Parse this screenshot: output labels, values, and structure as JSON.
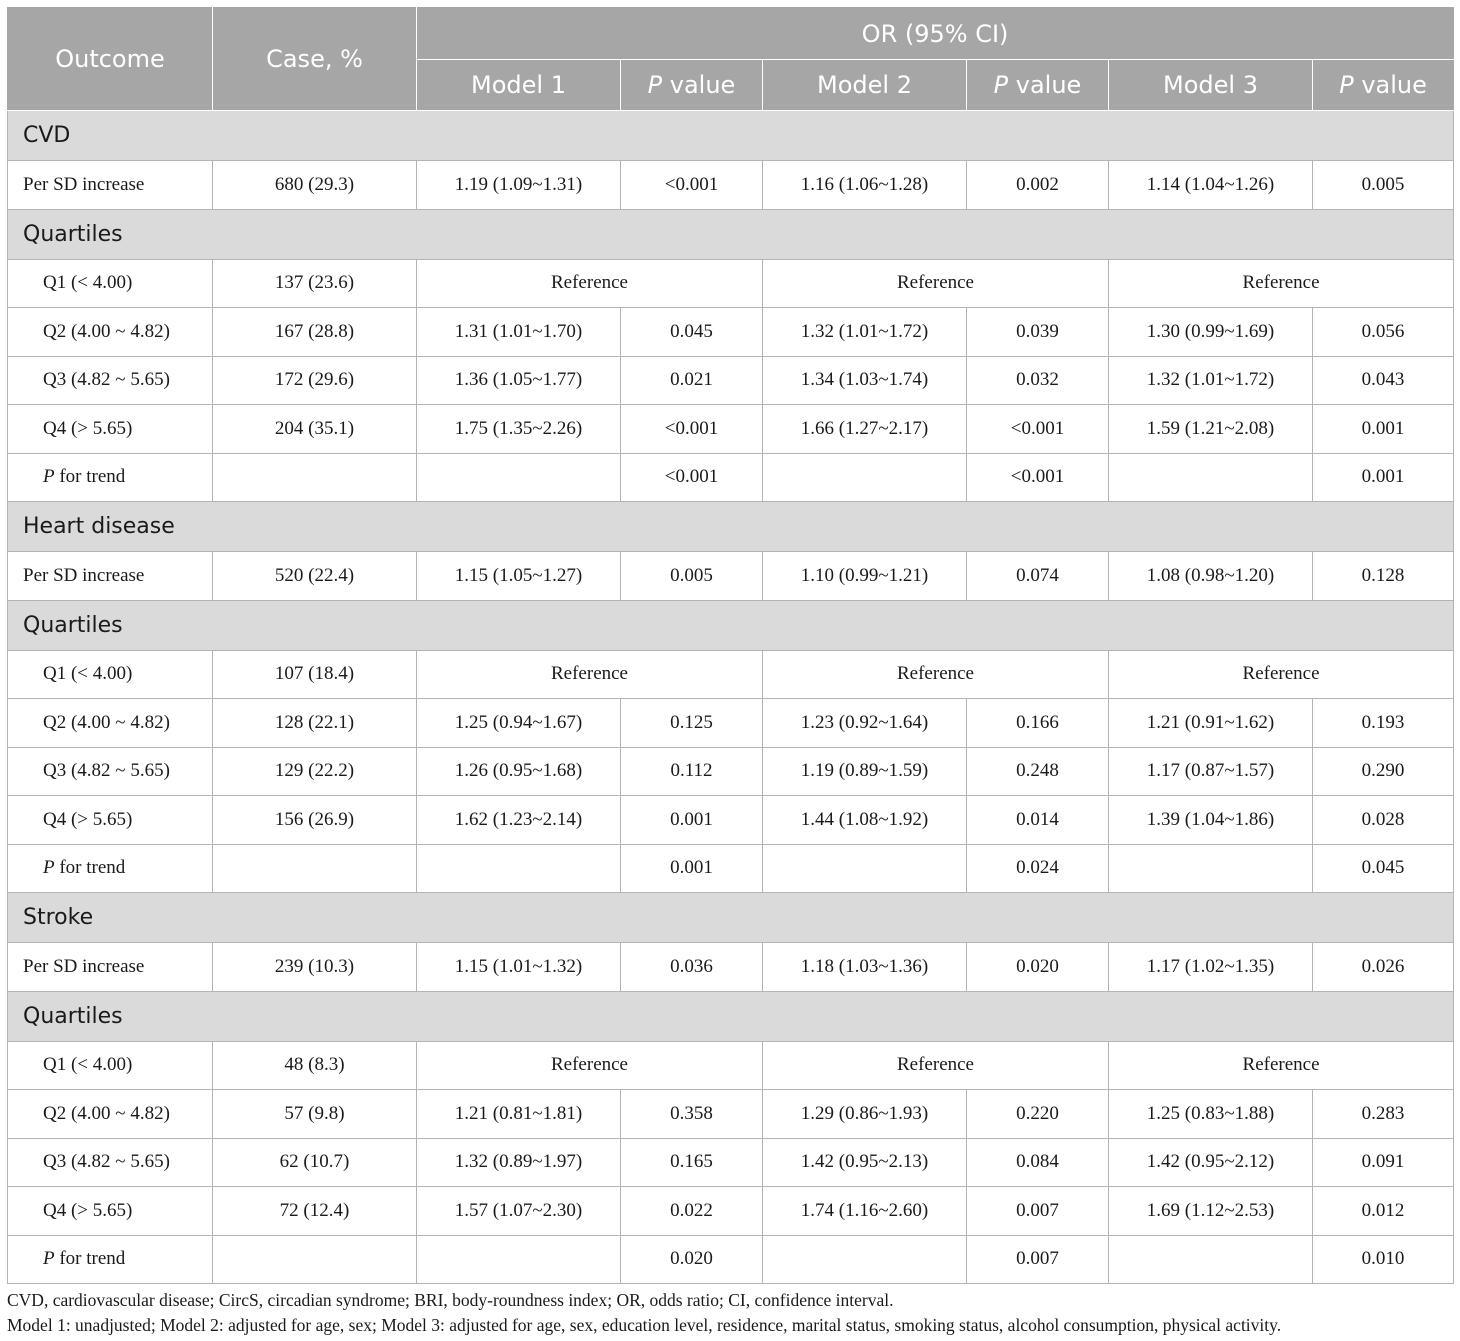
{
  "header": {
    "outcome": "Outcome",
    "case": "Case, %",
    "or_group": "OR (95% CI)",
    "model1": "Model 1",
    "model2": "Model 2",
    "model3": "Model 3",
    "p_italic": "P",
    "p_rest": " value"
  },
  "sections": [
    {
      "title": "CVD",
      "per_sd": {
        "label": "Per SD increase",
        "case": "680 (29.3)",
        "m1": "1.19 (1.09~1.31)",
        "p1": "<0.001",
        "m2": "1.16 (1.06~1.28)",
        "p2": "0.002",
        "m3": "1.14 (1.04~1.26)",
        "p3": "0.005"
      },
      "quartile_title": "Quartiles",
      "q1": {
        "label": "Q1 (< 4.00)",
        "case": "137 (23.6)",
        "ref": "Reference"
      },
      "q2": {
        "label": "Q2 (4.00 ~ 4.82)",
        "case": "167 (28.8)",
        "m1": "1.31 (1.01~1.70)",
        "p1": "0.045",
        "m2": "1.32 (1.01~1.72)",
        "p2": "0.039",
        "m3": "1.30 (0.99~1.69)",
        "p3": "0.056"
      },
      "q3": {
        "label": "Q3 (4.82 ~ 5.65)",
        "case": "172 (29.6)",
        "m1": "1.36 (1.05~1.77)",
        "p1": "0.021",
        "m2": "1.34 (1.03~1.74)",
        "p2": "0.032",
        "m3": "1.32 (1.01~1.72)",
        "p3": "0.043"
      },
      "q4": {
        "label": "Q4 (> 5.65)",
        "case": "204 (35.1)",
        "m1": "1.75 (1.35~2.26)",
        "p1": "<0.001",
        "m2": "1.66 (1.27~2.17)",
        "p2": "<0.001",
        "m3": "1.59 (1.21~2.08)",
        "p3": "0.001"
      },
      "trend": {
        "label_italic": "P",
        "label_rest": " for trend",
        "p1": "<0.001",
        "p2": "<0.001",
        "p3": "0.001"
      }
    },
    {
      "title": "Heart disease",
      "per_sd": {
        "label": "Per SD increase",
        "case": "520 (22.4)",
        "m1": "1.15 (1.05~1.27)",
        "p1": "0.005",
        "m2": "1.10 (0.99~1.21)",
        "p2": "0.074",
        "m3": "1.08 (0.98~1.20)",
        "p3": "0.128"
      },
      "quartile_title": "Quartiles",
      "q1": {
        "label": "Q1 (< 4.00)",
        "case": "107 (18.4)",
        "ref": "Reference"
      },
      "q2": {
        "label": "Q2 (4.00 ~ 4.82)",
        "case": "128 (22.1)",
        "m1": "1.25 (0.94~1.67)",
        "p1": "0.125",
        "m2": "1.23 (0.92~1.64)",
        "p2": "0.166",
        "m3": "1.21 (0.91~1.62)",
        "p3": "0.193"
      },
      "q3": {
        "label": "Q3 (4.82 ~ 5.65)",
        "case": "129 (22.2)",
        "m1": "1.26 (0.95~1.68)",
        "p1": "0.112",
        "m2": "1.19 (0.89~1.59)",
        "p2": "0.248",
        "m3": "1.17 (0.87~1.57)",
        "p3": "0.290"
      },
      "q4": {
        "label": "Q4 (> 5.65)",
        "case": "156 (26.9)",
        "m1": "1.62 (1.23~2.14)",
        "p1": "0.001",
        "m2": "1.44 (1.08~1.92)",
        "p2": "0.014",
        "m3": "1.39 (1.04~1.86)",
        "p3": "0.028"
      },
      "trend": {
        "label_italic": "P",
        "label_rest": " for trend",
        "p1": "0.001",
        "p2": "0.024",
        "p3": "0.045"
      }
    },
    {
      "title": "Stroke",
      "per_sd": {
        "label": "Per SD increase",
        "case": "239 (10.3)",
        "m1": "1.15 (1.01~1.32)",
        "p1": "0.036",
        "m2": "1.18 (1.03~1.36)",
        "p2": "0.020",
        "m3": "1.17 (1.02~1.35)",
        "p3": "0.026"
      },
      "quartile_title": "Quartiles",
      "q1": {
        "label": "Q1 (< 4.00)",
        "case": "48 (8.3)",
        "ref": "Reference"
      },
      "q2": {
        "label": "Q2 (4.00 ~ 4.82)",
        "case": "57 (9.8)",
        "m1": "1.21 (0.81~1.81)",
        "p1": "0.358",
        "m2": "1.29 (0.86~1.93)",
        "p2": "0.220",
        "m3": "1.25 (0.83~1.88)",
        "p3": "0.283"
      },
      "q3": {
        "label": "Q3 (4.82 ~ 5.65)",
        "case": "62 (10.7)",
        "m1": "1.32 (0.89~1.97)",
        "p1": "0.165",
        "m2": "1.42 (0.95~2.13)",
        "p2": "0.084",
        "m3": "1.42 (0.95~2.12)",
        "p3": "0.091"
      },
      "q4": {
        "label": "Q4 (> 5.65)",
        "case": "72 (12.4)",
        "m1": "1.57 (1.07~2.30)",
        "p1": "0.022",
        "m2": "1.74 (1.16~2.60)",
        "p2": "0.007",
        "m3": "1.69 (1.12~2.53)",
        "p3": "0.012"
      },
      "trend": {
        "label_italic": "P",
        "label_rest": " for trend",
        "p1": "0.020",
        "p2": "0.007",
        "p3": "0.010"
      }
    }
  ],
  "footnotes": [
    "CVD, cardiovascular disease; CircS, circadian syndrome; BRI, body-roundness index; OR, odds ratio; CI, confidence interval.",
    "Model 1: unadjusted; Model 2: adjusted for age, sex; Model 3: adjusted for age, sex, education level, residence, marital status, smoking status, alcohol consumption, physical activity."
  ]
}
